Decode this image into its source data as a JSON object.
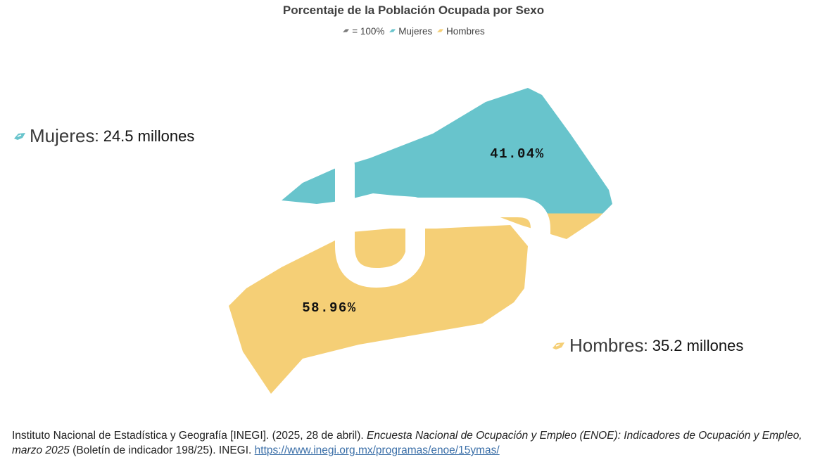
{
  "chart_data": {
    "type": "pie",
    "title": "Porcentaje de la Población Ocupada por Sexo",
    "legend": {
      "total_label": "= 100%",
      "items": [
        {
          "name": "Mujeres",
          "color": "#68c4cc"
        },
        {
          "name": "Hombres",
          "color": "#f5cf76"
        }
      ]
    },
    "series": [
      {
        "name": "Mujeres",
        "percent": 41.04,
        "percent_label": "41.04%",
        "value_label": ": 24.5 millones",
        "color": "#68c4cc"
      },
      {
        "name": "Hombres",
        "percent": 58.96,
        "percent_label": "58.96%",
        "value_label": ": 35.2 millones",
        "color": "#f5cf76"
      }
    ]
  },
  "source": {
    "part1": "Instituto Nacional de Estadística y Geografía [INEGI]. (2025, 28 de abril). ",
    "italic": "Encuesta Nacional de Ocupación y Empleo (ENOE): Indicadores de Ocupación y Empleo, marzo 2025",
    "part2": " (Boletín de indicador 198/25). INEGI. ",
    "link": "https://www.inegi.org.mx/programas/enoe/15ymas/"
  }
}
